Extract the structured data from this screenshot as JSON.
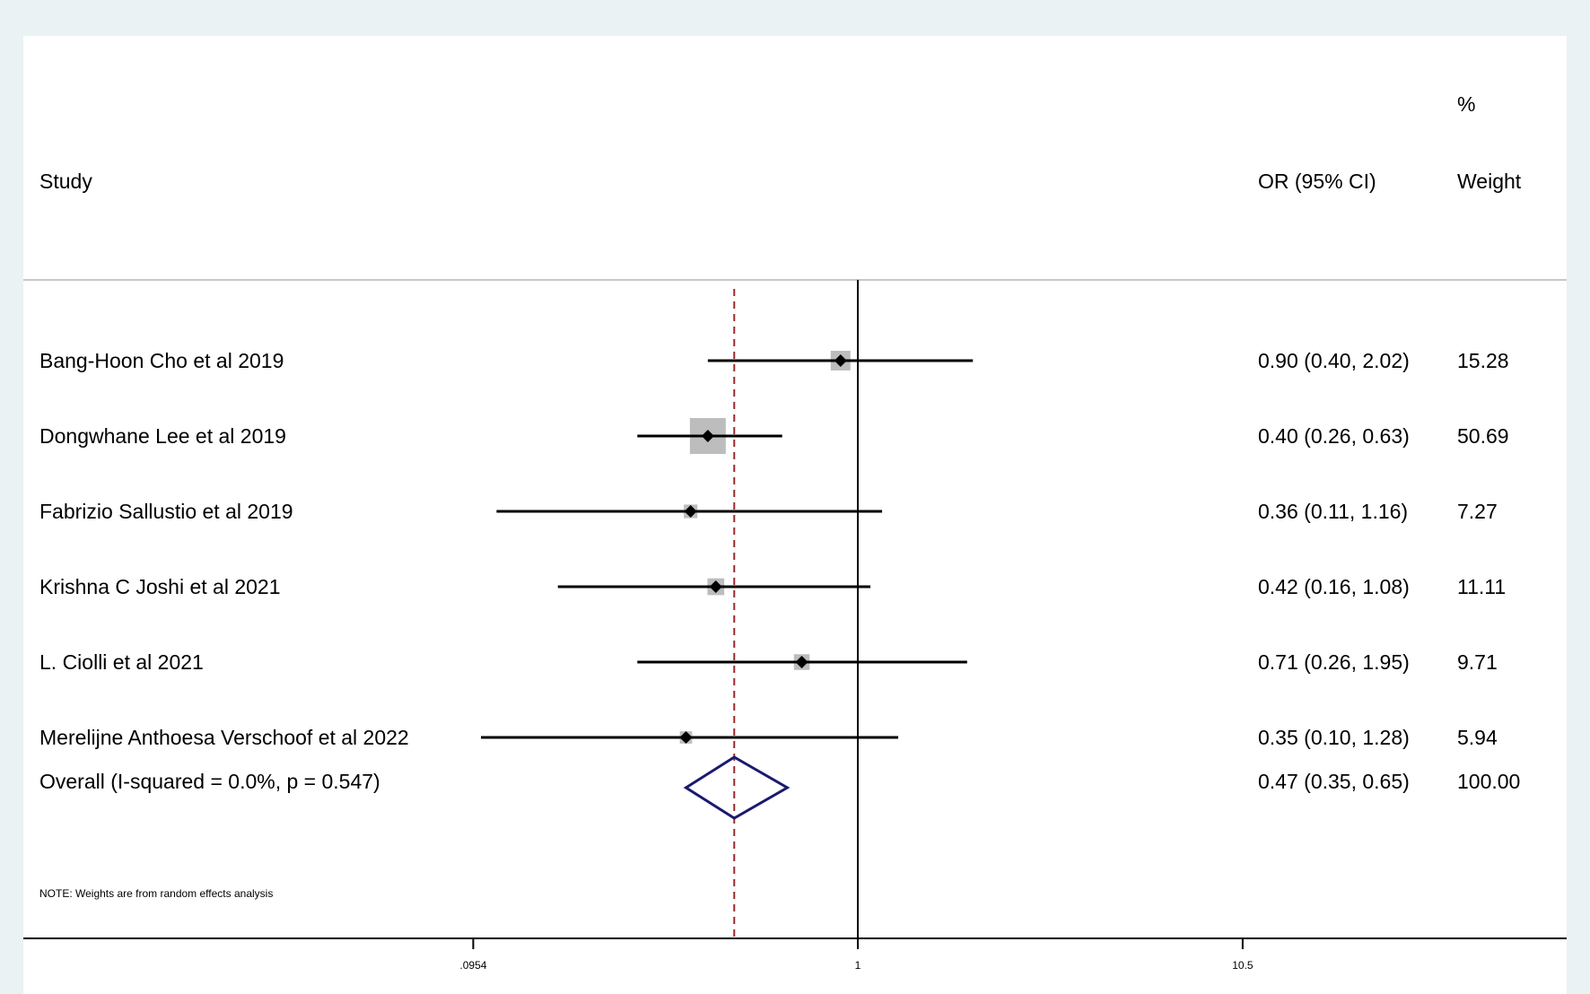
{
  "chart_data": {
    "type": "forest",
    "header": {
      "study": "Study",
      "effect": "OR (95% CI)",
      "weight_pct": "%",
      "weight": "Weight"
    },
    "studies": [
      {
        "label": "Bang-Hoon Cho et al 2019",
        "or": 0.9,
        "lo": 0.4,
        "hi": 2.02,
        "weight": 15.28,
        "ci_text": "0.90 (0.40, 2.02)",
        "weight_text": "15.28"
      },
      {
        "label": "Dongwhane Lee et al 2019",
        "or": 0.4,
        "lo": 0.26,
        "hi": 0.63,
        "weight": 50.69,
        "ci_text": "0.40 (0.26, 0.63)",
        "weight_text": "50.69"
      },
      {
        "label": "Fabrizio Sallustio et al 2019",
        "or": 0.36,
        "lo": 0.11,
        "hi": 1.16,
        "weight": 7.27,
        "ci_text": "0.36 (0.11, 1.16)",
        "weight_text": "7.27"
      },
      {
        "label": "Krishna C Joshi et al 2021",
        "or": 0.42,
        "lo": 0.16,
        "hi": 1.08,
        "weight": 11.11,
        "ci_text": "0.42 (0.16, 1.08)",
        "weight_text": "11.11"
      },
      {
        "label": "L. Ciolli et al 2021",
        "or": 0.71,
        "lo": 0.26,
        "hi": 1.95,
        "weight": 9.71,
        "ci_text": "0.71 (0.26, 1.95)",
        "weight_text": "9.71"
      },
      {
        "label": "Merelijne Anthoesa Verschoof et al 2022",
        "or": 0.35,
        "lo": 0.1,
        "hi": 1.28,
        "weight": 5.94,
        "ci_text": "0.35 (0.10, 1.28)",
        "weight_text": "5.94"
      }
    ],
    "overall": {
      "label": "Overall  (I-squared = 0.0%, p = 0.547)",
      "or": 0.47,
      "lo": 0.35,
      "hi": 0.65,
      "ci_text": "0.47 (0.35, 0.65)",
      "weight_text": "100.00"
    },
    "note": "NOTE: Weights are from random effects analysis",
    "x_scale": "log",
    "x_ticks": [
      {
        "value": 0.0954,
        "label": ".0954"
      },
      {
        "value": 1,
        "label": "1"
      },
      {
        "value": 10.5,
        "label": "10.5"
      }
    ],
    "null_line": 1,
    "colors": {
      "box": "#bdbdbd",
      "diamond": "#1a1a6e",
      "overall_line": "#9b2a2a",
      "line": "#000000",
      "header_rule": "#c8c8c8"
    }
  }
}
